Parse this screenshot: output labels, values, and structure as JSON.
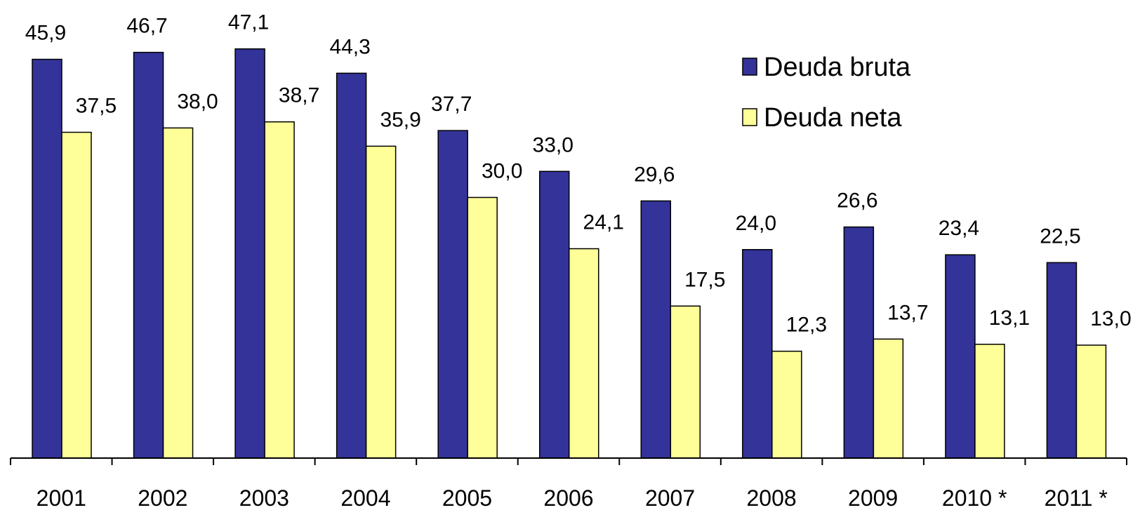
{
  "chart_data": {
    "type": "bar",
    "categories": [
      "2001",
      "2002",
      "2003",
      "2004",
      "2005",
      "2006",
      "2007",
      "2008",
      "2009",
      "2010 *",
      "2011 *"
    ],
    "series": [
      {
        "name": "Deuda bruta",
        "color": "#333399",
        "values": [
          45.9,
          46.7,
          47.1,
          44.3,
          37.7,
          33.0,
          29.6,
          24.0,
          26.6,
          23.4,
          22.5
        ],
        "value_labels": [
          "45,9",
          "46,7",
          "47,1",
          "44,3",
          "37,7",
          "33,0",
          "29,6",
          "24,0",
          "26,6",
          "23,4",
          "22,5"
        ]
      },
      {
        "name": "Deuda neta",
        "color": "#ffff99",
        "values": [
          37.5,
          38.0,
          38.7,
          35.9,
          30.0,
          24.1,
          17.5,
          12.3,
          13.7,
          13.1,
          13.0
        ],
        "value_labels": [
          "37,5",
          "38,0",
          "38,7",
          "35,9",
          "30,0",
          "24,1",
          "17,5",
          "12,3",
          "13,7",
          "13,1",
          "13,0"
        ]
      }
    ],
    "ylim": [
      0,
      52
    ],
    "legend": "top-right"
  }
}
